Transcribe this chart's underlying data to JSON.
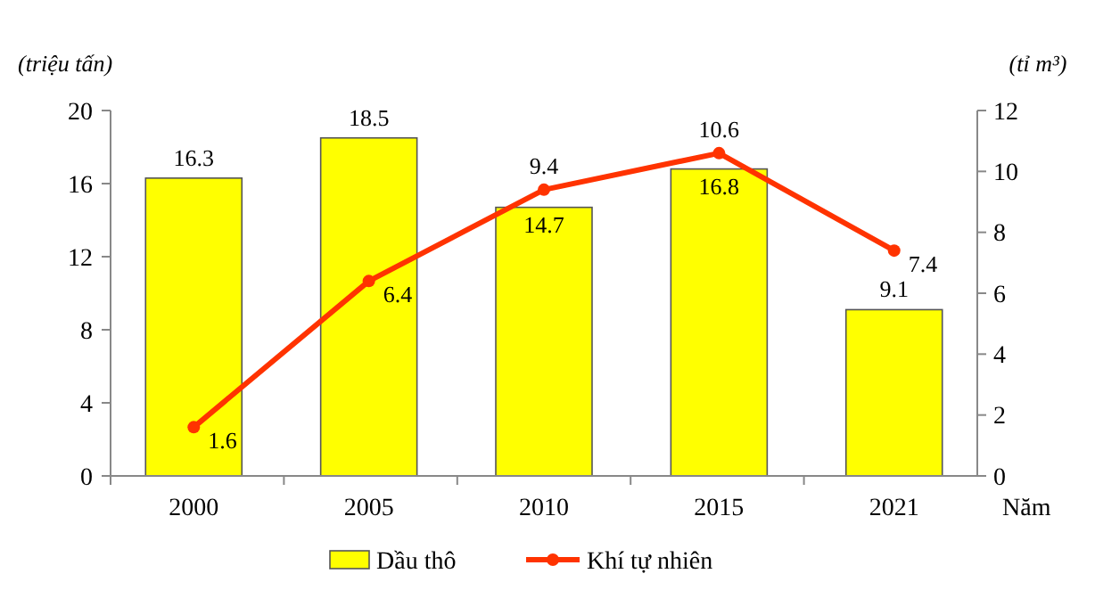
{
  "chart_data": {
    "type": "bar",
    "categories": [
      "2000",
      "2005",
      "2010",
      "2015",
      "2021"
    ],
    "series": [
      {
        "name": "Dầu thô",
        "color": "#ffff00",
        "values": [
          16.3,
          18.5,
          14.7,
          16.8,
          9.1
        ]
      },
      {
        "name": "Khí tự nhiên",
        "type": "line",
        "axis": "y2",
        "color": "#ff3300",
        "values": [
          1.6,
          6.4,
          9.4,
          10.6,
          7.4
        ]
      }
    ],
    "ylabel": "(triệu tấn)",
    "y2label": "(tỉ m³)",
    "xlabel": "Năm",
    "ylim": [
      0,
      20
    ],
    "yticks": [
      0,
      4,
      8,
      12,
      16,
      20
    ],
    "y2lim": [
      0,
      12
    ],
    "y2ticks": [
      0,
      2,
      4,
      6,
      8,
      10,
      12
    ],
    "data_labels": true,
    "marker": "circle",
    "legend": "bottom",
    "grid": false
  }
}
